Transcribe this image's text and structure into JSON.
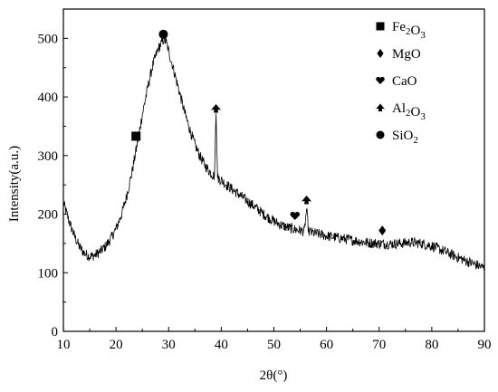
{
  "chart_data": {
    "type": "line",
    "xlabel": "2θ(°)",
    "ylabel": "Intensity(a.u.)",
    "xlim": [
      10,
      90
    ],
    "ylim": [
      0,
      550
    ],
    "x_ticks": [
      10,
      20,
      30,
      40,
      50,
      60,
      70,
      80,
      90
    ],
    "y_ticks": [
      0,
      100,
      200,
      300,
      400,
      500
    ],
    "grid": false,
    "legend_position": "top-right",
    "series": [
      {
        "color": "#000000",
        "points": [
          [
            10,
            220
          ],
          [
            11,
            190
          ],
          [
            12,
            165
          ],
          [
            13,
            145
          ],
          [
            14,
            133
          ],
          [
            15,
            128
          ],
          [
            16,
            130
          ],
          [
            17,
            136
          ],
          [
            18,
            145
          ],
          [
            19,
            158
          ],
          [
            20,
            175
          ],
          [
            21,
            198
          ],
          [
            22,
            230
          ],
          [
            23,
            270
          ],
          [
            24,
            318
          ],
          [
            25,
            370
          ],
          [
            26,
            415
          ],
          [
            27,
            455
          ],
          [
            28,
            482
          ],
          [
            29,
            497
          ],
          [
            29.5,
            495
          ],
          [
            30,
            478
          ],
          [
            31,
            445
          ],
          [
            32,
            410
          ],
          [
            33,
            375
          ],
          [
            34,
            345
          ],
          [
            35,
            318
          ],
          [
            36,
            298
          ],
          [
            37,
            282
          ],
          [
            38,
            270
          ],
          [
            38.7,
            265
          ],
          [
            39,
            372
          ],
          [
            39.3,
            262
          ],
          [
            40,
            258
          ],
          [
            41,
            250
          ],
          [
            42,
            243
          ],
          [
            43,
            236
          ],
          [
            44,
            229
          ],
          [
            45,
            222
          ],
          [
            46,
            215
          ],
          [
            47,
            208
          ],
          [
            48,
            200
          ],
          [
            49,
            194
          ],
          [
            50,
            188
          ],
          [
            51,
            183
          ],
          [
            52,
            179
          ],
          [
            53,
            176
          ],
          [
            54,
            174
          ],
          [
            55,
            172
          ],
          [
            55.8,
            171
          ],
          [
            56.2,
            208
          ],
          [
            56.6,
            170
          ],
          [
            58,
            167
          ],
          [
            60,
            163
          ],
          [
            62,
            160
          ],
          [
            64,
            157
          ],
          [
            66,
            154
          ],
          [
            68,
            151
          ],
          [
            70,
            150
          ],
          [
            72,
            149
          ],
          [
            74,
            150
          ],
          [
            76,
            152
          ],
          [
            78,
            150
          ],
          [
            80,
            146
          ],
          [
            82,
            138
          ],
          [
            84,
            130
          ],
          [
            86,
            122
          ],
          [
            88,
            115
          ],
          [
            90,
            108
          ]
        ]
      }
    ],
    "peak_markers": [
      {
        "x": 23.8,
        "y": 333,
        "symbol": "square"
      },
      {
        "x": 29.0,
        "y": 507,
        "symbol": "circle"
      },
      {
        "x": 39.0,
        "y": 380,
        "symbol": "spade"
      },
      {
        "x": 54.0,
        "y": 197,
        "symbol": "heart"
      },
      {
        "x": 56.2,
        "y": 224,
        "symbol": "spade"
      },
      {
        "x": 70.6,
        "y": 172,
        "symbol": "diamond"
      }
    ],
    "legend": [
      {
        "symbol": "square",
        "base": "Fe",
        "sub1": "2",
        "mid": "O",
        "sub2": "3"
      },
      {
        "symbol": "diamond",
        "base": "MgO",
        "sub1": "",
        "mid": "",
        "sub2": ""
      },
      {
        "symbol": "heart",
        "base": "CaO",
        "sub1": "",
        "mid": "",
        "sub2": ""
      },
      {
        "symbol": "spade",
        "base": "Al",
        "sub1": "2",
        "mid": "O",
        "sub2": "3"
      },
      {
        "symbol": "circle",
        "base": "SiO",
        "sub1": "2",
        "mid": "",
        "sub2": ""
      }
    ]
  }
}
